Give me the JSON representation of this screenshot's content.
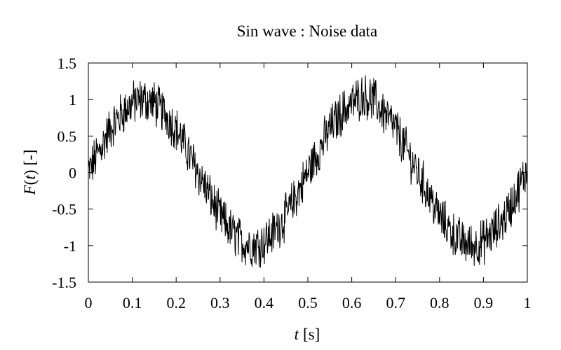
{
  "chart_data": {
    "type": "line",
    "title": "Sin wave : Noise data",
    "xlabel": {
      "var": "t",
      "unit": "[s]"
    },
    "ylabel": {
      "func": "F",
      "var": "t",
      "unit": "[-]"
    },
    "xlim": [
      0,
      1
    ],
    "ylim": [
      -1.5,
      1.5
    ],
    "x_ticks": [
      "0",
      "0.1",
      "0.2",
      "0.3",
      "0.4",
      "0.5",
      "0.6",
      "0.7",
      "0.8",
      "0.9",
      "1"
    ],
    "y_ticks": [
      "1.5",
      "1",
      "0.5",
      "0",
      "-0.5",
      "-1",
      "-1.5"
    ],
    "grid": false,
    "line_color": "#000000",
    "series": [
      {
        "x": [
          0,
          0.025,
          0.05,
          0.075,
          0.1,
          0.125,
          0.15,
          0.175,
          0.2,
          0.225,
          0.25,
          0.275,
          0.3,
          0.325,
          0.35,
          0.375,
          0.4,
          0.425,
          0.45,
          0.475,
          0.5,
          0.525,
          0.55,
          0.575,
          0.6,
          0.625,
          0.65,
          0.675,
          0.7,
          0.725,
          0.75,
          0.775,
          0.8,
          0.825,
          0.85,
          0.875,
          0.9,
          0.925,
          0.95,
          0.975,
          1
        ],
        "y": [
          0.0,
          0.3,
          0.6,
          0.8,
          0.95,
          1.0,
          0.95,
          0.8,
          0.6,
          0.3,
          0.0,
          -0.3,
          -0.6,
          -0.8,
          -0.95,
          -1.0,
          -0.95,
          -0.8,
          -0.6,
          -0.3,
          0.0,
          0.3,
          0.6,
          0.8,
          0.95,
          1.05,
          1.0,
          0.8,
          0.6,
          0.3,
          0.0,
          -0.3,
          -0.6,
          -0.8,
          -0.95,
          -1.0,
          -0.95,
          -0.8,
          -0.6,
          -0.3,
          0.05
        ]
      }
    ]
  }
}
